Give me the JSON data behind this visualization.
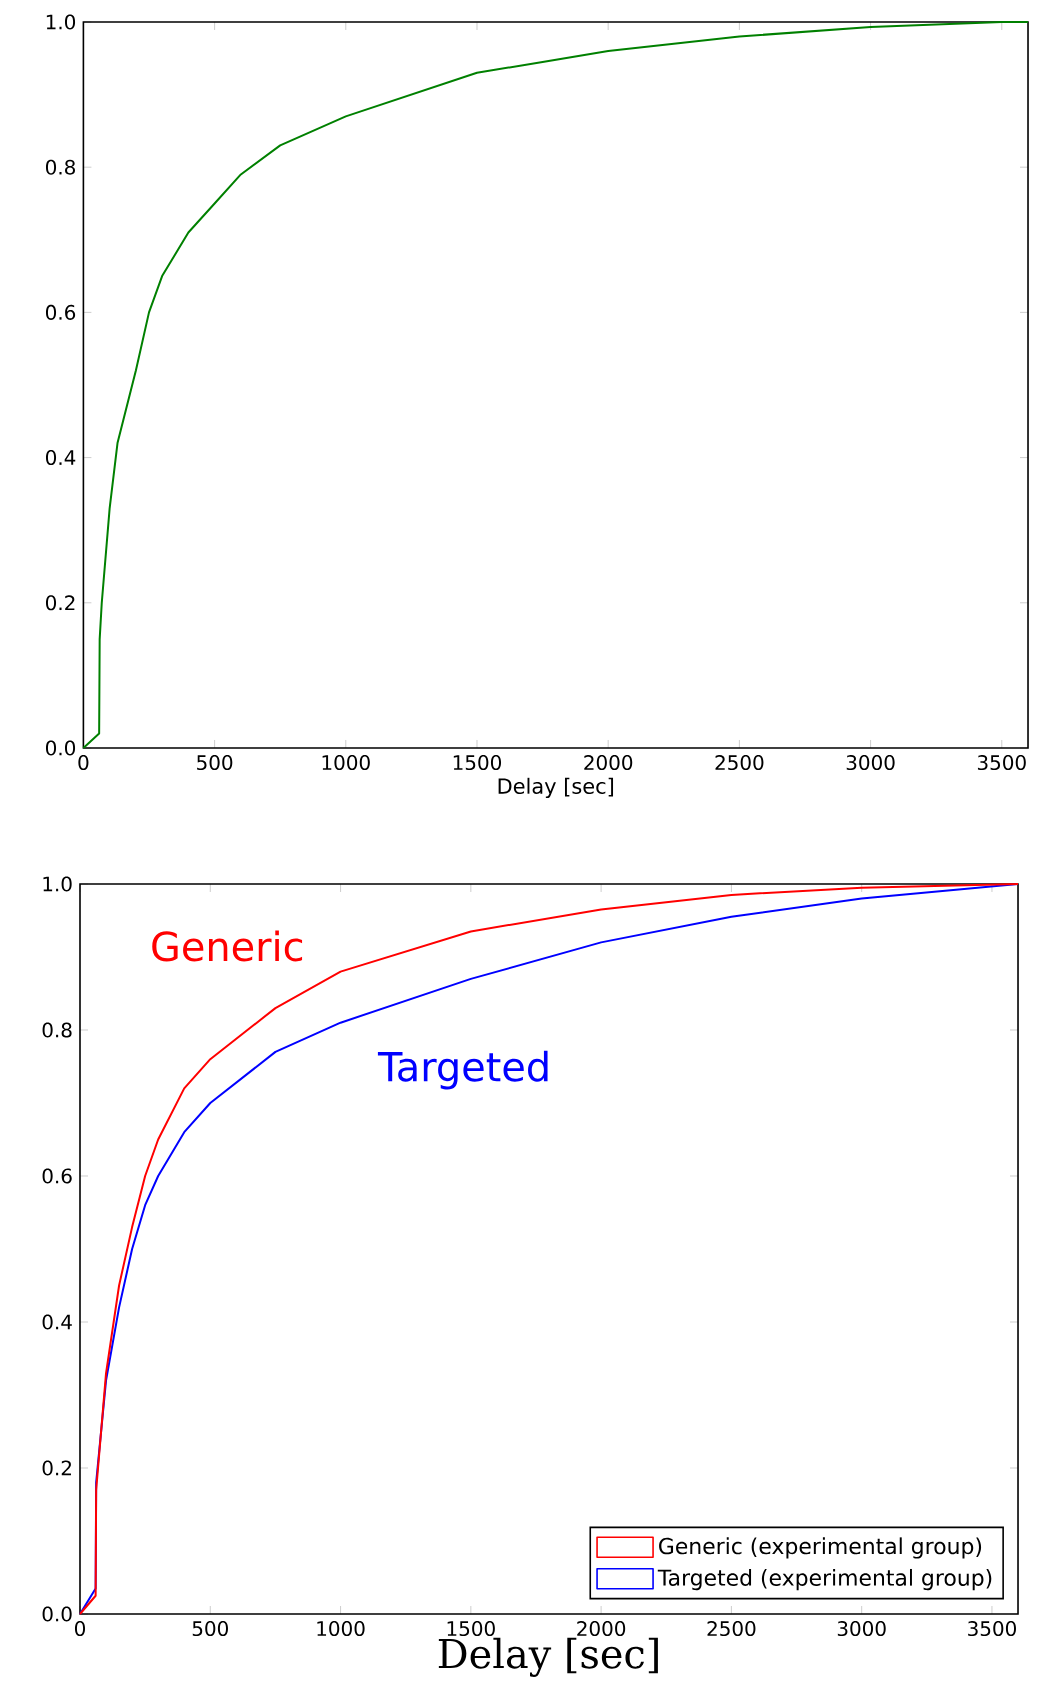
{
  "chart_data": [
    {
      "type": "line",
      "xlabel": "Delay [sec]",
      "xlim": [
        0,
        3600
      ],
      "ylim": [
        0,
        1
      ],
      "xticks": [
        0,
        500,
        1000,
        1500,
        2000,
        2500,
        3000,
        3500
      ],
      "yticks": [
        {
          "value": 0,
          "label": "0.0"
        },
        {
          "value": 0.2,
          "label": "0.2"
        },
        {
          "value": 0.4,
          "label": "0.4"
        },
        {
          "value": 0.6,
          "label": "0.6"
        },
        {
          "value": 0.8,
          "label": "0.8"
        },
        {
          "value": 1,
          "label": "1.0"
        }
      ],
      "series": [
        {
          "color": "#008000",
          "x": [
            0,
            60,
            62,
            70,
            100,
            130,
            200,
            250,
            300,
            400,
            500,
            600,
            750,
            1000,
            1250,
            1500,
            1750,
            2000,
            2500,
            3000,
            3500,
            3600
          ],
          "values": [
            0,
            0.02,
            0.15,
            0.2,
            0.33,
            0.42,
            0.52,
            0.6,
            0.65,
            0.71,
            0.75,
            0.79,
            0.83,
            0.87,
            0.9,
            0.93,
            0.945,
            0.96,
            0.98,
            0.993,
            1.0,
            1.0
          ]
        }
      ]
    },
    {
      "type": "line",
      "xlabel": "Delay [sec]",
      "xlim": [
        0,
        3600
      ],
      "ylim": [
        0,
        1
      ],
      "legend": "bottom right",
      "xticks": [
        0,
        500,
        1000,
        1500,
        2000,
        2500,
        3000,
        3500
      ],
      "yticks": [
        {
          "value": 0,
          "label": "0.0"
        },
        {
          "value": 0.2,
          "label": "0.2"
        },
        {
          "value": 0.4,
          "label": "0.4"
        },
        {
          "value": 0.6,
          "label": "0.6"
        },
        {
          "value": 0.8,
          "label": "0.8"
        },
        {
          "value": 1,
          "label": "1.0"
        }
      ],
      "annotations": [
        "Generic",
        "Targeted"
      ],
      "series": [
        {
          "name": "Generic (experimental group)",
          "color": "#ff0000",
          "x": [
            0,
            60,
            62,
            100,
            150,
            200,
            250,
            300,
            400,
            500,
            750,
            1000,
            1500,
            2000,
            2500,
            3000,
            3600
          ],
          "values": [
            0,
            0.025,
            0.17,
            0.33,
            0.45,
            0.53,
            0.6,
            0.65,
            0.72,
            0.76,
            0.83,
            0.88,
            0.935,
            0.965,
            0.985,
            0.995,
            1.0
          ]
        },
        {
          "name": "Targeted (experimental group)",
          "color": "#0000ff",
          "x": [
            0,
            60,
            62,
            100,
            150,
            200,
            250,
            300,
            400,
            500,
            750,
            1000,
            1500,
            2000,
            2500,
            3000,
            3600
          ],
          "values": [
            0,
            0.035,
            0.18,
            0.32,
            0.42,
            0.5,
            0.56,
            0.6,
            0.66,
            0.7,
            0.77,
            0.81,
            0.87,
            0.92,
            0.955,
            0.98,
            1.0
          ]
        }
      ]
    }
  ]
}
